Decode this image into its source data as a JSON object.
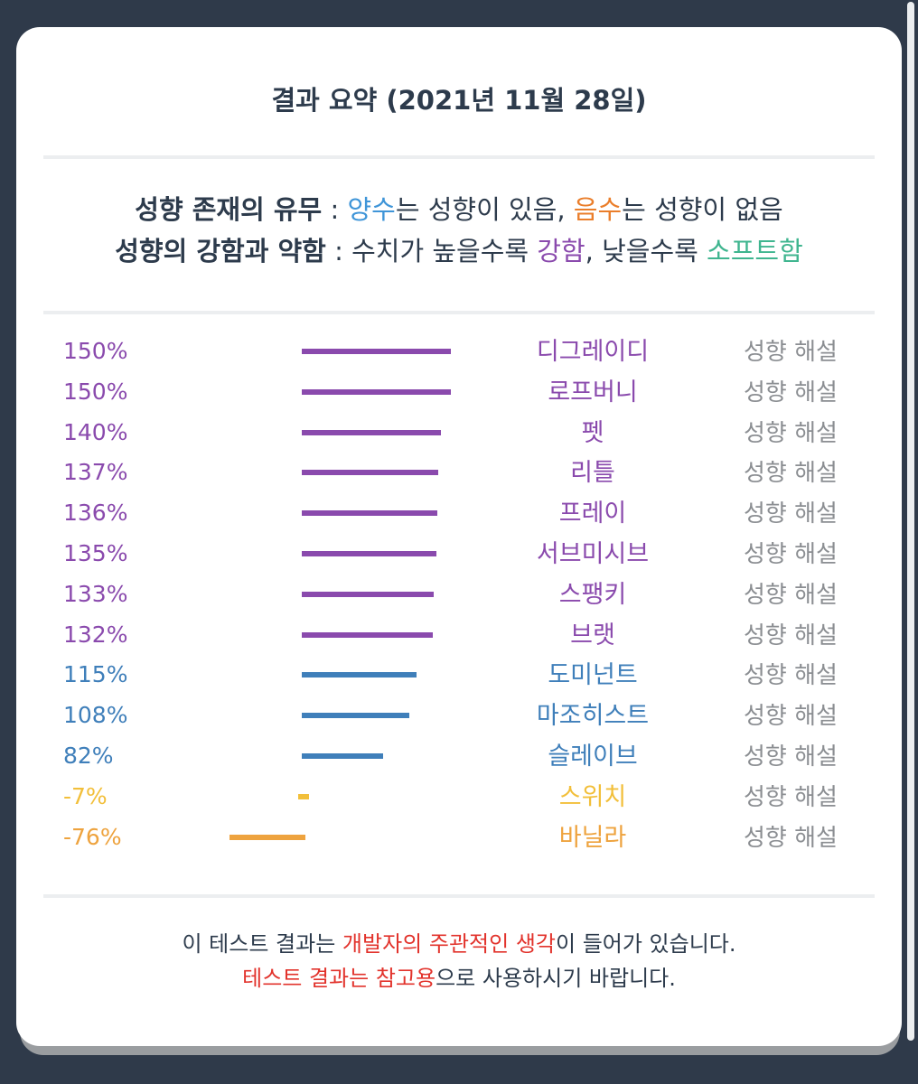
{
  "title": "결과 요약 (2021년 11월 28일)",
  "legend": {
    "line1": {
      "heading": "성향 존재의 유무",
      "sep": " : ",
      "positive_word": "양수",
      "positive_rest": "는 성향이 있음, ",
      "negative_word": "음수",
      "negative_rest": "는 성향이 없음"
    },
    "line2": {
      "heading": "성향의 강함과 약함",
      "sep": " : ",
      "text_a": "수치가 높을수록 ",
      "strong_word": "강함",
      "text_b": ", 낮을수록 ",
      "soft_word": "소프트함"
    }
  },
  "colors": {
    "purple": "#8a4aad",
    "blue": "#3f7fba",
    "yellow": "#f2bf3a",
    "orange": "#eea33e",
    "gray": "#8b8e92"
  },
  "explain_label": "성향 해설",
  "chart_data": {
    "type": "bar",
    "categories": [
      "디그레이디",
      "로프버니",
      "펫",
      "리틀",
      "프레이",
      "서브미시브",
      "스팽키",
      "브랫",
      "도미넌트",
      "마조히스트",
      "슬레이브",
      "스위치",
      "바닐라"
    ],
    "values": [
      150,
      150,
      140,
      137,
      136,
      135,
      133,
      132,
      115,
      108,
      82,
      -7,
      -76
    ],
    "labels": [
      "150%",
      "150%",
      "140%",
      "137%",
      "136%",
      "135%",
      "133%",
      "132%",
      "115%",
      "108%",
      "82%",
      "-7%",
      "-76%"
    ],
    "color_groups": [
      "purple",
      "purple",
      "purple",
      "purple",
      "purple",
      "purple",
      "purple",
      "purple",
      "blue",
      "blue",
      "blue",
      "yellow",
      "orange"
    ]
  },
  "footer": {
    "line1_a": "이 테스트 결과는 ",
    "line1_red": "개발자의 주관적인 생각",
    "line1_b": "이 들어가 있습니다.",
    "line2_red": "테스트 결과는 참고용",
    "line2_b": "으로 사용하시기 바랍니다."
  }
}
